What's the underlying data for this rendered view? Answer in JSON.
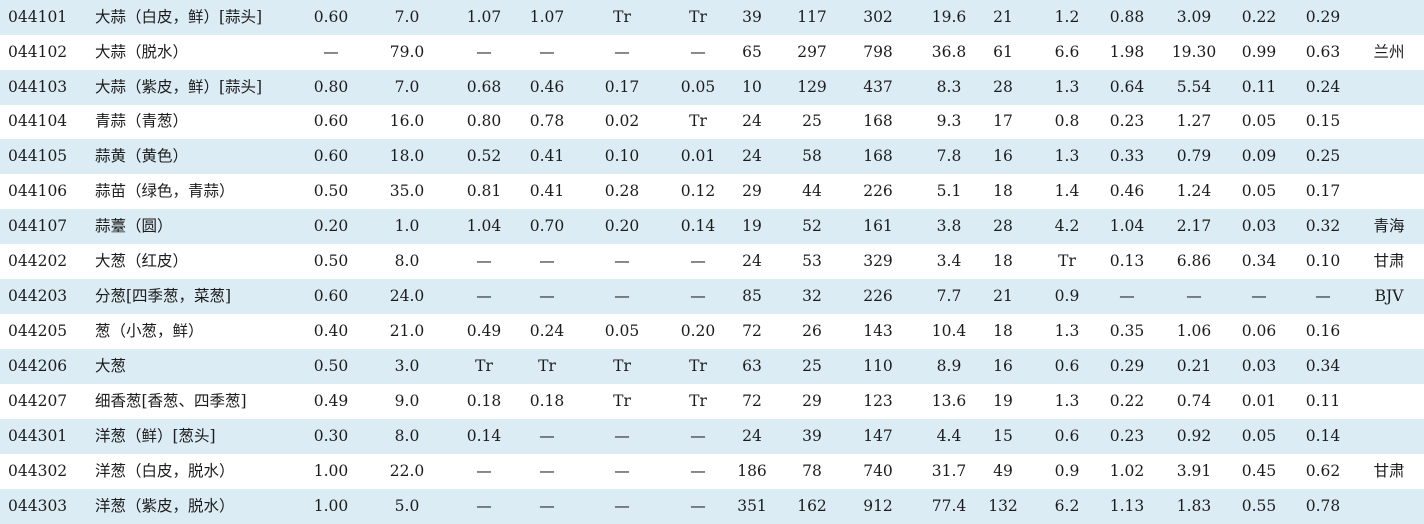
{
  "rows": [
    {
      "cells": [
        "044101",
        "大蒜（白皮，鲜）[蒜头]",
        "0.60",
        "7.0",
        "1.07",
        "1.07",
        "Tr",
        "Tr",
        "39",
        "117",
        "302",
        "19.6",
        "21",
        "1.2",
        "0.88",
        "3.09",
        "0.22",
        "0.29",
        ""
      ]
    },
    {
      "cells": [
        "044102",
        "大蒜（脱水）",
        "—",
        "79.0",
        "—",
        "—",
        "—",
        "—",
        "65",
        "297",
        "798",
        "36.8",
        "61",
        "6.6",
        "1.98",
        "19.30",
        "0.99",
        "0.63",
        "兰州"
      ]
    },
    {
      "cells": [
        "044103",
        "大蒜（紫皮，鲜）[蒜头]",
        "0.80",
        "7.0",
        "0.68",
        "0.46",
        "0.17",
        "0.05",
        "10",
        "129",
        "437",
        "8.3",
        "28",
        "1.3",
        "0.64",
        "5.54",
        "0.11",
        "0.24",
        ""
      ]
    },
    {
      "cells": [
        "044104",
        "青蒜（青葱）",
        "0.60",
        "16.0",
        "0.80",
        "0.78",
        "0.02",
        "Tr",
        "24",
        "25",
        "168",
        "9.3",
        "17",
        "0.8",
        "0.23",
        "1.27",
        "0.05",
        "0.15",
        ""
      ]
    },
    {
      "cells": [
        "044105",
        "蒜黄（黄色）",
        "0.60",
        "18.0",
        "0.52",
        "0.41",
        "0.10",
        "0.01",
        "24",
        "58",
        "168",
        "7.8",
        "16",
        "1.3",
        "0.33",
        "0.79",
        "0.09",
        "0.25",
        ""
      ]
    },
    {
      "cells": [
        "044106",
        "蒜苗（绿色，青蒜）",
        "0.50",
        "35.0",
        "0.81",
        "0.41",
        "0.28",
        "0.12",
        "29",
        "44",
        "226",
        "5.1",
        "18",
        "1.4",
        "0.46",
        "1.24",
        "0.05",
        "0.17",
        ""
      ]
    },
    {
      "cells": [
        "044107",
        "蒜薹（圆）",
        "0.20",
        "1.0",
        "1.04",
        "0.70",
        "0.20",
        "0.14",
        "19",
        "52",
        "161",
        "3.8",
        "28",
        "4.2",
        "1.04",
        "2.17",
        "0.03",
        "0.32",
        "青海"
      ]
    },
    {
      "cells": [
        "044202",
        "大葱（红皮）",
        "0.50",
        "8.0",
        "—",
        "—",
        "—",
        "—",
        "24",
        "53",
        "329",
        "3.4",
        "18",
        "Tr",
        "0.13",
        "6.86",
        "0.34",
        "0.10",
        "甘肃"
      ]
    },
    {
      "cells": [
        "044203",
        "分葱[四季葱，菜葱]",
        "0.60",
        "24.0",
        "—",
        "—",
        "—",
        "—",
        "85",
        "32",
        "226",
        "7.7",
        "21",
        "0.9",
        "—",
        "—",
        "—",
        "—",
        "BJV"
      ]
    },
    {
      "cells": [
        "044205",
        "葱（小葱，鲜）",
        "0.40",
        "21.0",
        "0.49",
        "0.24",
        "0.05",
        "0.20",
        "72",
        "26",
        "143",
        "10.4",
        "18",
        "1.3",
        "0.35",
        "1.06",
        "0.06",
        "0.16",
        ""
      ]
    },
    {
      "cells": [
        "044206",
        "大葱",
        "0.50",
        "3.0",
        "Tr",
        "Tr",
        "Tr",
        "Tr",
        "63",
        "25",
        "110",
        "8.9",
        "16",
        "0.6",
        "0.29",
        "0.21",
        "0.03",
        "0.34",
        ""
      ]
    },
    {
      "cells": [
        "044207",
        "细香葱[香葱、四季葱]",
        "0.49",
        "9.0",
        "0.18",
        "0.18",
        "Tr",
        "Tr",
        "72",
        "29",
        "123",
        "13.6",
        "19",
        "1.3",
        "0.22",
        "0.74",
        "0.01",
        "0.11",
        ""
      ]
    },
    {
      "cells": [
        "044301",
        "洋葱（鲜）[葱头]",
        "0.30",
        "8.0",
        "0.14",
        "—",
        "—",
        "—",
        "24",
        "39",
        "147",
        "4.4",
        "15",
        "0.6",
        "0.23",
        "0.92",
        "0.05",
        "0.14",
        ""
      ]
    },
    {
      "cells": [
        "044302",
        "洋葱（白皮，脱水）",
        "1.00",
        "22.0",
        "—",
        "—",
        "—",
        "—",
        "186",
        "78",
        "740",
        "31.7",
        "49",
        "0.9",
        "1.02",
        "3.91",
        "0.45",
        "0.62",
        "甘肃"
      ]
    },
    {
      "cells": [
        "044303",
        "洋葱（紫皮，脱水）",
        "1.00",
        "5.0",
        "—",
        "—",
        "—",
        "—",
        "351",
        "162",
        "912",
        "77.4",
        "132",
        "6.2",
        "1.13",
        "1.83",
        "0.55",
        "0.78",
        ""
      ]
    }
  ]
}
